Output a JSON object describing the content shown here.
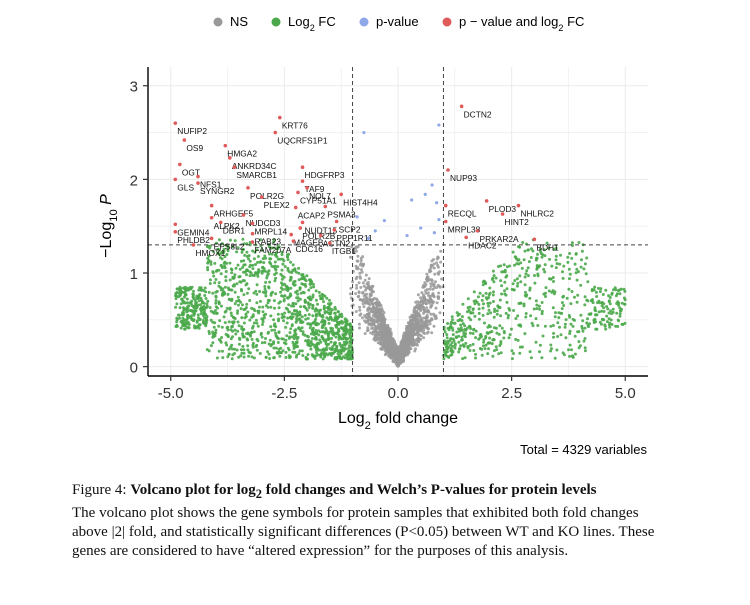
{
  "chart_data": {
    "type": "scatter",
    "legend": {
      "position": "top",
      "items": [
        {
          "key": "ns",
          "label": "NS",
          "color": "#999999"
        },
        {
          "key": "fc",
          "label": "Log",
          "sub": "2",
          "suffix": " FC",
          "color": "#4aa84a"
        },
        {
          "key": "p",
          "label": "p-value",
          "color": "#8ea8e8"
        },
        {
          "key": "both",
          "label": "p − value and log",
          "sub": "2",
          "suffix": " FC",
          "color": "#e05a5a"
        }
      ]
    },
    "xlabel": {
      "text": "Log",
      "sub": "2",
      "rest": " fold change"
    },
    "ylabel": {
      "text": "−Log",
      "sub": "10",
      "rest": " P"
    },
    "xlim": [
      -5.5,
      5.5
    ],
    "ylim": [
      -0.1,
      3.2
    ],
    "x_ticks": [
      {
        "v": -5.0,
        "label": "-5.0"
      },
      {
        "v": -2.5,
        "label": "-2.5"
      },
      {
        "v": 0.0,
        "label": "0.0"
      },
      {
        "v": 2.5,
        "label": "2.5"
      },
      {
        "v": 5.0,
        "label": "5.0"
      }
    ],
    "y_ticks": [
      {
        "v": 0,
        "label": "0"
      },
      {
        "v": 1,
        "label": "1"
      },
      {
        "v": 2,
        "label": "2"
      },
      {
        "v": 3,
        "label": "3"
      }
    ],
    "fc_cutoff": [
      -1,
      1
    ],
    "p_cutoff": 1.3,
    "grid": true,
    "caption_total": "Total = 4329 variables",
    "labeled_points": [
      {
        "gene": "DCTN2",
        "x": 1.4,
        "y": 2.78
      },
      {
        "gene": "KRT76",
        "x": -2.6,
        "y": 2.66
      },
      {
        "gene": "NUFIP2",
        "x": -4.9,
        "y": 2.6
      },
      {
        "gene": "UQCRFS1P1",
        "x": -2.7,
        "y": 2.5
      },
      {
        "gene": "OS9",
        "x": -4.7,
        "y": 2.42
      },
      {
        "gene": "HMGA2",
        "x": -3.8,
        "y": 2.36
      },
      {
        "gene": "ANKRD34C",
        "x": -3.7,
        "y": 2.23
      },
      {
        "gene": "HDGFRP3",
        "x": -2.1,
        "y": 2.13
      },
      {
        "gene": "OGT",
        "x": -4.8,
        "y": 2.16
      },
      {
        "gene": "SMARCB1",
        "x": -3.6,
        "y": 2.13
      },
      {
        "gene": "NUP93",
        "x": 1.1,
        "y": 2.1
      },
      {
        "gene": "NFS1",
        "x": -4.4,
        "y": 2.03
      },
      {
        "gene": "TAF9",
        "x": -2.1,
        "y": 1.98
      },
      {
        "gene": "GLS",
        "x": -4.9,
        "y": 2.0
      },
      {
        "gene": "SYNGR2",
        "x": -4.4,
        "y": 1.96
      },
      {
        "gene": "POLR2G",
        "x": -3.3,
        "y": 1.91
      },
      {
        "gene": "NOL7",
        "x": -2.0,
        "y": 1.91
      },
      {
        "gene": "CYP51A1",
        "x": -2.2,
        "y": 1.86
      },
      {
        "gene": "HIST4H4",
        "x": -1.25,
        "y": 1.84
      },
      {
        "gene": "PLEX2",
        "x": -3.0,
        "y": 1.81
      },
      {
        "gene": "PLOD3",
        "x": 1.95,
        "y": 1.77
      },
      {
        "gene": "RECQL",
        "x": 1.05,
        "y": 1.72
      },
      {
        "gene": "NHLRC2",
        "x": 2.65,
        "y": 1.72
      },
      {
        "gene": "ARHGEF5",
        "x": -4.1,
        "y": 1.72
      },
      {
        "gene": "ACAP2",
        "x": -2.25,
        "y": 1.7
      },
      {
        "gene": "PSMA3",
        "x": -1.6,
        "y": 1.71
      },
      {
        "gene": "HINT2",
        "x": 2.3,
        "y": 1.63
      },
      {
        "gene": "NUDCD3",
        "x": -3.4,
        "y": 1.62
      },
      {
        "gene": "ALPK2",
        "x": -4.1,
        "y": 1.59
      },
      {
        "gene": "MRPL38",
        "x": 1.05,
        "y": 1.55
      },
      {
        "gene": "NUDT15",
        "x": -2.1,
        "y": 1.54
      },
      {
        "gene": "SCP2",
        "x": -1.35,
        "y": 1.55
      },
      {
        "gene": "GEMIN4",
        "x": -4.9,
        "y": 1.52
      },
      {
        "gene": "DBR1",
        "x": -3.9,
        "y": 1.54
      },
      {
        "gene": "MRPL14",
        "x": -3.2,
        "y": 1.53
      },
      {
        "gene": "POLR2B",
        "x": -2.15,
        "y": 1.48
      },
      {
        "gene": "PRKAR2A",
        "x": 1.75,
        "y": 1.45
      },
      {
        "gene": "PPP1R11",
        "x": -1.4,
        "y": 1.46
      },
      {
        "gene": "PHLDB2",
        "x": -4.9,
        "y": 1.44
      },
      {
        "gene": "RAB23",
        "x": -3.2,
        "y": 1.42
      },
      {
        "gene": "MAGEB",
        "x": -2.35,
        "y": 1.41
      },
      {
        "gene": "ACTN2",
        "x": -1.7,
        "y": 1.4
      },
      {
        "gene": "HDAC2",
        "x": 1.5,
        "y": 1.38
      },
      {
        "gene": "BDH1",
        "x": 3.0,
        "y": 1.36
      },
      {
        "gene": "EPS8L2",
        "x": -4.1,
        "y": 1.37
      },
      {
        "gene": "FAM207A",
        "x": -3.2,
        "y": 1.33
      },
      {
        "gene": "CDC16",
        "x": -2.3,
        "y": 1.34
      },
      {
        "gene": "ITGB1",
        "x": -1.5,
        "y": 1.32
      },
      {
        "gene": "HMOX1",
        "x": -4.5,
        "y": 1.3
      }
    ],
    "pvalue_only_points": [
      {
        "x": 0.9,
        "y": 2.58
      },
      {
        "x": -0.75,
        "y": 2.5
      },
      {
        "x": 0.75,
        "y": 1.94
      },
      {
        "x": 0.6,
        "y": 1.84
      },
      {
        "x": 0.3,
        "y": 1.78
      },
      {
        "x": 0.85,
        "y": 1.75
      },
      {
        "x": -0.9,
        "y": 1.6
      },
      {
        "x": -0.3,
        "y": 1.56
      },
      {
        "x": 0.9,
        "y": 1.57
      },
      {
        "x": 0.5,
        "y": 1.48
      },
      {
        "x": -0.5,
        "y": 1.45
      },
      {
        "x": 0.8,
        "y": 1.43
      },
      {
        "x": 0.2,
        "y": 1.4
      },
      {
        "x": -0.65,
        "y": 1.37
      }
    ]
  },
  "caption": {
    "label": "Figure 4:",
    "title_a": "Volcano plot for log",
    "title_sub": "2",
    "title_b": " fold changes and Welch’s P-values for protein levels",
    "body": "The volcano plot shows the gene symbols for protein samples that exhibited both fold changes above |2| fold, and statistically significant differences (P<0.05) between WT and KO lines.  These genes are considered to have “altered expression” for the purposes of this analysis."
  }
}
